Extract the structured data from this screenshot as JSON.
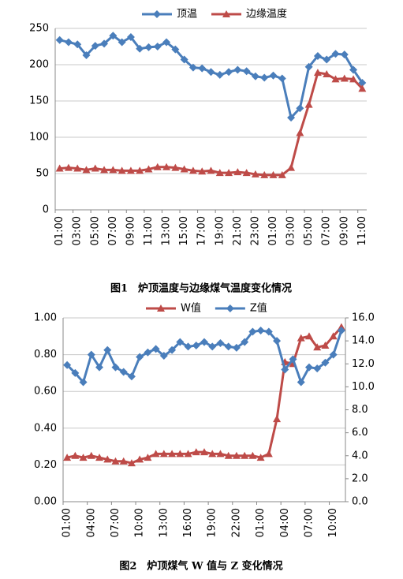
{
  "charts": [
    {
      "type": "line",
      "legend": "top",
      "categories": [
        "01:00",
        null,
        "03:00",
        null,
        "05:00",
        null,
        "07:00",
        null,
        "09:00",
        null,
        "11:00",
        null,
        "13:00",
        null,
        "15:00",
        null,
        "17:00",
        null,
        "19:00",
        null,
        "21:00",
        null,
        "23:00",
        null,
        "01:00",
        null,
        "03:00",
        null,
        "05:00",
        null,
        "07:00",
        null,
        "09:00",
        null,
        "11:00"
      ],
      "series": [
        {
          "name": "顶温",
          "color": "#4a7ebb",
          "marker": "diamond",
          "values": [
            234,
            231,
            228,
            213,
            226,
            229,
            240,
            231,
            238,
            222,
            224,
            225,
            231,
            221,
            207,
            196,
            195,
            190,
            186,
            190,
            193,
            191,
            184,
            182,
            185,
            181,
            127,
            140,
            197,
            212,
            207,
            215,
            214,
            193,
            175
          ]
        },
        {
          "name": "边缘温度",
          "color": "#be4b48",
          "marker": "triangle",
          "values": [
            57,
            58,
            57,
            55,
            57,
            55,
            55,
            54,
            54,
            54,
            56,
            59,
            59,
            58,
            56,
            54,
            53,
            54,
            51,
            51,
            52,
            51,
            49,
            48,
            48,
            48,
            58,
            106,
            145,
            189,
            187,
            180,
            181,
            180,
            167
          ]
        }
      ],
      "ylim": [
        0,
        250
      ],
      "yticks": [
        0,
        50,
        100,
        150,
        200,
        250
      ],
      "grid": true,
      "caption": "图1　炉顶温度与边缘煤气温度变化情况"
    },
    {
      "type": "line",
      "legend": "top",
      "categories": [
        "01:00",
        null,
        null,
        "04:00",
        null,
        null,
        "07:00",
        null,
        null,
        "10:00",
        null,
        null,
        "13:00",
        null,
        null,
        "16:00",
        null,
        null,
        "19:00",
        null,
        null,
        "22:00",
        null,
        null,
        "01:00",
        null,
        null,
        "04:00",
        null,
        null,
        "07:00",
        null,
        null,
        "10:00",
        null
      ],
      "series": [
        {
          "name": "W值",
          "color": "#be4b48",
          "marker": "triangle",
          "values": [
            0.24,
            0.25,
            0.24,
            0.25,
            0.24,
            0.23,
            0.22,
            0.22,
            0.21,
            0.23,
            0.24,
            0.26,
            0.26,
            0.26,
            0.26,
            0.26,
            0.27,
            0.27,
            0.26,
            0.26,
            0.25,
            0.25,
            0.25,
            0.25,
            0.24,
            0.26,
            0.45,
            0.76,
            0.75,
            0.89,
            0.9,
            0.84,
            0.85,
            0.9,
            0.95
          ]
        },
        {
          "name": "Z值",
          "color": "#4a7ebb",
          "marker": "diamond",
          "axis": "y2",
          "values": [
            11.9,
            11.2,
            10.4,
            12.8,
            11.7,
            13.2,
            11.7,
            11.3,
            10.9,
            12.6,
            13,
            13.3,
            12.7,
            13.2,
            13.9,
            13.5,
            13.6,
            13.9,
            13.5,
            13.8,
            13.5,
            13.4,
            13.9,
            14.8,
            14.9,
            14.8,
            14,
            11.5,
            12.4,
            10.4,
            11.7,
            11.6,
            12.1,
            12.8,
            14.9
          ]
        }
      ],
      "ylim": [
        0,
        1
      ],
      "yticks": [
        {
          "value": 0,
          "label": "0.00"
        },
        {
          "value": 0.2,
          "label": "0.20"
        },
        {
          "value": 0.4,
          "label": "0.40"
        },
        {
          "value": 0.6,
          "label": "0.60"
        },
        {
          "value": 0.8,
          "label": "0.80"
        },
        {
          "value": 1,
          "label": "1.00"
        }
      ],
      "y2lim": [
        0,
        16
      ],
      "y2ticks": [
        {
          "value": 0,
          "label": "0.0"
        },
        {
          "value": 2,
          "label": "2.0"
        },
        {
          "value": 4,
          "label": "4.0"
        },
        {
          "value": 6,
          "label": "6.0"
        },
        {
          "value": 8,
          "label": "8.0"
        },
        {
          "value": 10,
          "label": "10.0"
        },
        {
          "value": 12,
          "label": "12.0"
        },
        {
          "value": 14,
          "label": "14.0"
        },
        {
          "value": 16,
          "label": "16.0"
        }
      ],
      "grid": true,
      "caption": "图2　炉顶煤气 W 值与 Z 变化情况"
    }
  ]
}
